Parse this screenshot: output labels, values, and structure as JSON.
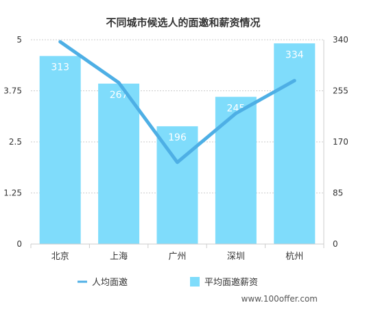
{
  "chart_data": {
    "type": "bar",
    "title": "不同城市候选人的面邀和薪资情况",
    "categories": [
      "北京",
      "上海",
      "广州",
      "深圳",
      "杭州"
    ],
    "series": [
      {
        "name": "平均面邀薪资",
        "type": "bar",
        "axis": "right",
        "values": [
          313,
          267,
          196,
          245,
          334
        ],
        "color": "#7fdcfb"
      },
      {
        "name": "人均面邀",
        "type": "line",
        "axis": "left",
        "values": [
          4.95,
          3.95,
          2.0,
          3.2,
          4.0
        ],
        "color": "#4eafe5"
      }
    ],
    "left_axis": {
      "ylim": [
        0,
        5
      ],
      "ticks": [
        "0",
        "1.25",
        "2.5",
        "3.75",
        "5"
      ]
    },
    "right_axis": {
      "ylim": [
        0,
        340
      ],
      "ticks": [
        "0",
        "85",
        "170",
        "255",
        "340"
      ]
    },
    "grid": true,
    "legend_position": "bottom"
  },
  "watermark": "www.100offer.com"
}
